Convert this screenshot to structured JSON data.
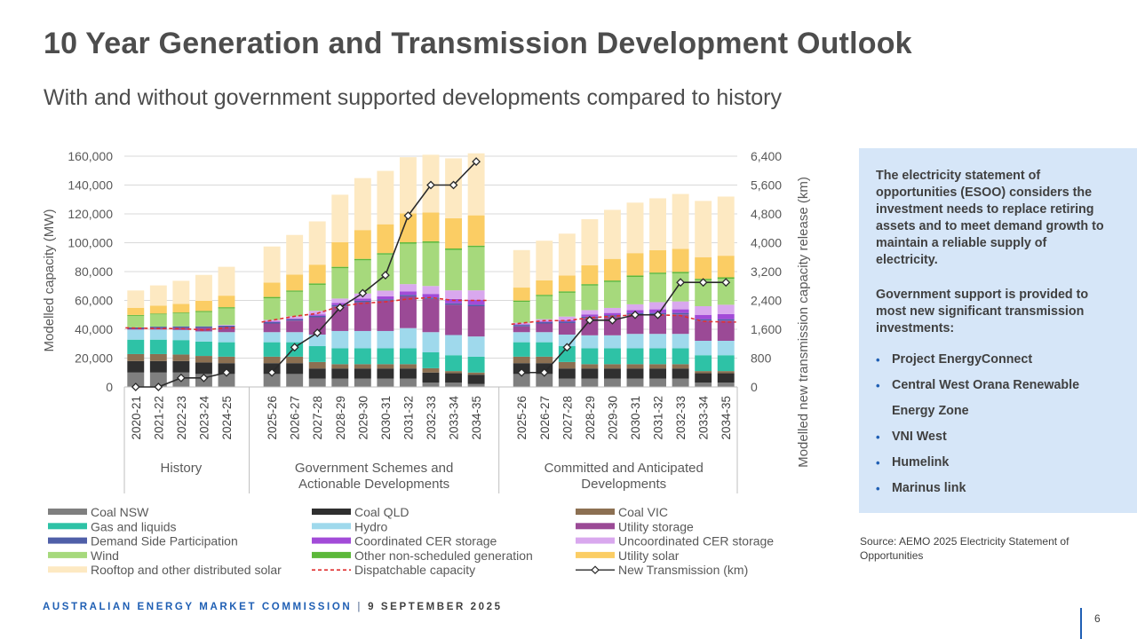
{
  "slide": {
    "title": "10 Year Generation and Transmission Development Outlook",
    "subtitle": "With and without government supported developments compared to history"
  },
  "panel": {
    "para1": "The electricity statement of opportunities (ESOO) considers the investment needs to replace retiring assets and to meet demand growth to maintain a reliable supply of electricity.",
    "para2": "Government support is provided to most new significant transmission investments:",
    "bullets": [
      "Project EnergyConnect",
      "Central West Orana Renewable Energy Zone",
      "VNI West",
      "Humelink",
      "Marinus link"
    ],
    "bullet_color": "#1f5fb4",
    "background": "#d6e6f8"
  },
  "source": "Source: AEMO 2025 Electricity Statement of Opportunities",
  "footer": {
    "org": "AUSTRALIAN ENERGY MARKET COMMISSION",
    "separator": "|",
    "date": "9 SEPTEMBER 2025",
    "page": "6"
  },
  "chart_data": {
    "type": "bar",
    "stacked": true,
    "ylabel": "Modelled capacity (MW)",
    "y2label": "Modelled new transmission capacity release (km)",
    "ylim": [
      0,
      160000
    ],
    "y2lim": [
      0,
      6400
    ],
    "yticks": [
      "0",
      "20,000",
      "40,000",
      "60,000",
      "80,000",
      "100,000",
      "120,000",
      "140,000",
      "160,000"
    ],
    "y2ticks": [
      "0",
      "800",
      "1,600",
      "2,400",
      "3,200",
      "4,000",
      "4,800",
      "5,600",
      "6,400"
    ],
    "grid": true,
    "legend_position": "bottom",
    "groups": [
      {
        "label": "History",
        "categories": [
          "2020-21",
          "2021-22",
          "2022-23",
          "2023-24",
          "2024-25"
        ]
      },
      {
        "label": "Government Schemes and Actionable Developments",
        "categories": [
          "2025-26",
          "2026-27",
          "2027-28",
          "2028-29",
          "2029-30",
          "2030-31",
          "2031-32",
          "2032-33",
          "2033-34",
          "2034-35"
        ]
      },
      {
        "label": "Committed and Anticipated Developments",
        "categories": [
          "2025-26",
          "2026-27",
          "2027-28",
          "2028-29",
          "2029-30",
          "2030-31",
          "2031-32",
          "2032-33",
          "2033-34",
          "2034-35"
        ]
      }
    ],
    "series": [
      {
        "name": "Coal NSW",
        "color": "#7f7f7f",
        "values": [
          10000,
          10000,
          10000,
          9000,
          9000,
          9000,
          9000,
          5800,
          5800,
          5800,
          5800,
          5800,
          3000,
          3000,
          2000,
          9000,
          9000,
          5800,
          5800,
          5800,
          5800,
          5800,
          5800,
          3000,
          3000
        ]
      },
      {
        "name": "Coal QLD",
        "color": "#2f2f2f",
        "values": [
          8000,
          8000,
          8000,
          8000,
          7500,
          7500,
          7500,
          7000,
          7000,
          7000,
          7000,
          7000,
          7000,
          6500,
          6500,
          7500,
          7500,
          7000,
          7000,
          7000,
          7000,
          7000,
          7000,
          6500,
          6500
        ]
      },
      {
        "name": "Coal VIC",
        "color": "#8c7052",
        "values": [
          4800,
          4800,
          4500,
          4500,
          4500,
          4500,
          4500,
          4500,
          3000,
          3000,
          3000,
          3000,
          3000,
          1500,
          1500,
          4500,
          4500,
          4500,
          3000,
          3000,
          3000,
          3000,
          3000,
          1500,
          1500
        ]
      },
      {
        "name": "Gas and liquids",
        "color": "#2ec2a6",
        "values": [
          10000,
          10000,
          10000,
          10000,
          10000,
          10000,
          10000,
          11000,
          11000,
          11000,
          11000,
          11000,
          11000,
          11000,
          11000,
          10000,
          10000,
          11000,
          11000,
          11000,
          11000,
          11000,
          11000,
          11000,
          11000
        ]
      },
      {
        "name": "Hydro",
        "color": "#9fd9ec",
        "values": [
          7000,
          7000,
          7000,
          7000,
          7000,
          7000,
          7000,
          8000,
          12000,
          12000,
          12000,
          14000,
          14000,
          14000,
          14000,
          7000,
          7000,
          8000,
          9000,
          9000,
          10000,
          10000,
          10000,
          10000,
          10000
        ]
      },
      {
        "name": "Utility storage",
        "color": "#9b4a96",
        "values": [
          500,
          1000,
          1500,
          2500,
          3500,
          6000,
          8000,
          12000,
          17000,
          20000,
          21000,
          22000,
          23000,
          21000,
          21000,
          4000,
          6000,
          8000,
          12000,
          13000,
          13500,
          13500,
          13500,
          14000,
          14000
        ]
      },
      {
        "name": "Demand Side Participation",
        "color": "#4f5fa8",
        "values": [
          1000,
          1000,
          1000,
          1000,
          1000,
          1000,
          1000,
          1000,
          1000,
          1000,
          1000,
          1000,
          1000,
          1000,
          1000,
          1000,
          1000,
          1000,
          1000,
          1000,
          1000,
          1000,
          1000,
          1000,
          1000
        ]
      },
      {
        "name": "Coordinated CER storage",
        "color": "#a24bd8",
        "values": [
          0,
          0,
          0,
          0,
          0,
          500,
          500,
          1000,
          1500,
          1500,
          2000,
          2500,
          2500,
          3000,
          3500,
          500,
          500,
          1000,
          1500,
          1500,
          2000,
          2500,
          2500,
          3000,
          3500
        ]
      },
      {
        "name": "Uncoordinated CER storage",
        "color": "#d9a8ee",
        "values": [
          0,
          0,
          0,
          0,
          500,
          1000,
          1500,
          2500,
          3000,
          3500,
          4000,
          5000,
          5500,
          6000,
          6500,
          1000,
          1500,
          2500,
          3000,
          3500,
          4000,
          5000,
          5500,
          6000,
          6500
        ]
      },
      {
        "name": "Wind",
        "color": "#a6d97c",
        "values": [
          8000,
          8500,
          9000,
          10000,
          11500,
          15000,
          17000,
          18000,
          21000,
          23000,
          25000,
          28000,
          30000,
          28000,
          30000,
          14500,
          16000,
          16500,
          17000,
          18000,
          19000,
          19500,
          19500,
          18000,
          18000
        ]
      },
      {
        "name": "Other non-scheduled generation",
        "color": "#5cb83a",
        "values": [
          600,
          600,
          600,
          700,
          800,
          900,
          900,
          1000,
          1000,
          1000,
          1000,
          1000,
          1000,
          1000,
          1000,
          900,
          900,
          1000,
          1000,
          1000,
          1000,
          1000,
          1000,
          1000,
          1000
        ]
      },
      {
        "name": "Utility solar",
        "color": "#fbcd64",
        "values": [
          5000,
          5500,
          6000,
          7000,
          8000,
          10000,
          11000,
          13000,
          17000,
          20000,
          20000,
          20000,
          20000,
          21000,
          21000,
          9000,
          10000,
          11000,
          13000,
          15000,
          15500,
          15500,
          16000,
          15000,
          15000
        ]
      },
      {
        "name": "Rooftop and other distributed solar",
        "color": "#fde9c2",
        "values": [
          12000,
          14000,
          16000,
          18000,
          20000,
          25000,
          27500,
          30000,
          33000,
          36000,
          37000,
          39000,
          40000,
          41500,
          43000,
          26000,
          27500,
          29000,
          32000,
          34000,
          35000,
          36000,
          38000,
          39000,
          41000
        ]
      }
    ],
    "dispatchable_capacity": {
      "name": "Dispatchable capacity",
      "color": "#e03030",
      "style": "dashed",
      "values": [
        41000,
        40500,
        40500,
        39500,
        41000,
        45000,
        49000,
        51000,
        56000,
        58000,
        59000,
        61000,
        62000,
        60000,
        60000,
        43500,
        46000,
        46000,
        48000,
        49000,
        50000,
        50000,
        49500,
        45500,
        45000
      ]
    },
    "new_transmission_km": {
      "name": "New Transmission (km)",
      "color": "#2a2a2a",
      "axis": "secondary",
      "values": [
        0,
        0,
        250,
        250,
        400,
        400,
        1100,
        1500,
        2200,
        2600,
        3100,
        4750,
        5600,
        5600,
        6250,
        400,
        400,
        1100,
        1850,
        1850,
        2000,
        2000,
        2900,
        2900,
        2900
      ]
    }
  }
}
